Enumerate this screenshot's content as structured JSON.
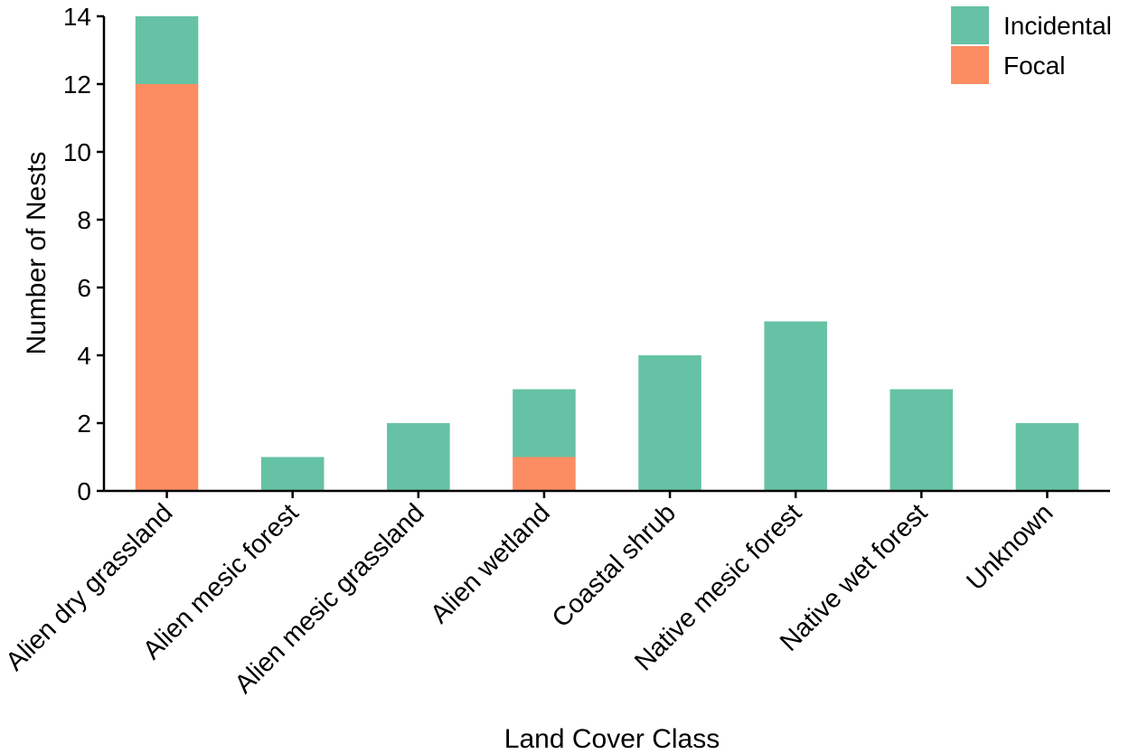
{
  "chart_data": {
    "type": "bar",
    "stacked": true,
    "title": "",
    "xlabel": "Land Cover Class",
    "ylabel": "Number of Nests",
    "ylim": [
      0,
      14
    ],
    "yticks": [
      0,
      2,
      4,
      6,
      8,
      10,
      12,
      14
    ],
    "grid": false,
    "legend_position": "top-right",
    "categories": [
      "Alien dry grassland",
      "Alien mesic forest",
      "Alien mesic grassland",
      "Alien wetland",
      "Coastal shrub",
      "Native mesic forest",
      "Native wet forest",
      "Unknown"
    ],
    "series": [
      {
        "name": "Focal",
        "color": "#fc8d62",
        "values": [
          12,
          0,
          0,
          1,
          0,
          0,
          0,
          0
        ]
      },
      {
        "name": "Incidental",
        "color": "#66c2a5",
        "values": [
          2,
          1,
          2,
          2,
          4,
          5,
          3,
          2
        ]
      }
    ],
    "legend_order": [
      "Incidental",
      "Focal"
    ]
  }
}
